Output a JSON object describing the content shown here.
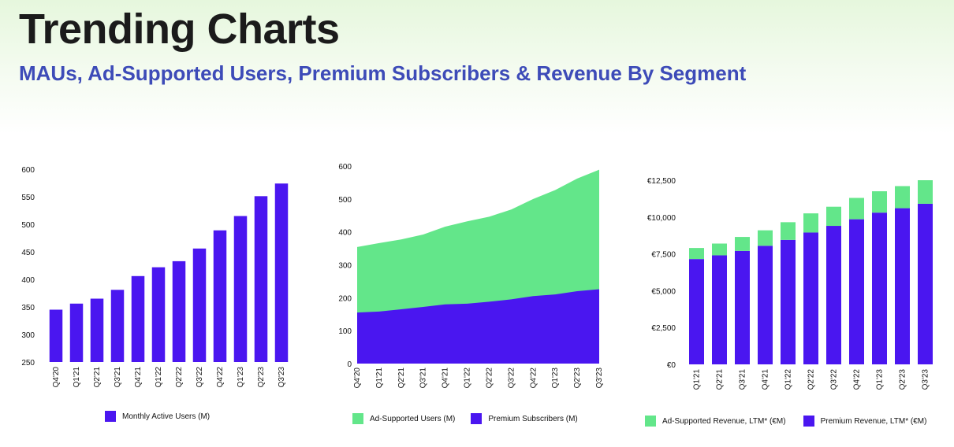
{
  "header": {
    "title": "Trending Charts",
    "subtitle": "MAUs, Ad-Supported Users, Premium Subscribers & Revenue By Segment"
  },
  "colors": {
    "premium": "#4a16f0",
    "ad_supported": "#63e68a"
  },
  "chart_data": [
    {
      "type": "bar",
      "categories": [
        "Q4'20",
        "Q1'21",
        "Q2'21",
        "Q3'21",
        "Q4'21",
        "Q1'22",
        "Q2'22",
        "Q3'22",
        "Q4'22",
        "Q1'23",
        "Q2'23",
        "Q3'23"
      ],
      "series": [
        {
          "name": "Monthly Active Users (M)",
          "values": [
            345,
            356,
            365,
            381,
            406,
            422,
            433,
            456,
            489,
            515,
            551,
            574
          ]
        }
      ],
      "ylim": [
        250,
        600
      ],
      "yticks": [
        "600",
        "550",
        "500",
        "450",
        "400",
        "350",
        "300",
        "250"
      ],
      "grid": false,
      "legend": "bottom"
    },
    {
      "type": "area",
      "categories": [
        "Q4'20",
        "Q1'21",
        "Q2'21",
        "Q3'21",
        "Q4'21",
        "Q1'22",
        "Q2'22",
        "Q3'22",
        "Q4'22",
        "Q1'23",
        "Q2'23",
        "Q3'23"
      ],
      "series": [
        {
          "name": "Premium Subscribers (M)",
          "values": [
            155,
            158,
            165,
            172,
            180,
            182,
            188,
            195,
            205,
            210,
            220,
            226
          ]
        },
        {
          "name": "Ad-Supported Users (M)",
          "values": [
            199,
            208,
            212,
            220,
            236,
            250,
            258,
            273,
            295,
            317,
            342,
            363
          ]
        }
      ],
      "stacked": true,
      "ylim": [
        0,
        600
      ],
      "yticks": [
        "600",
        "500",
        "400",
        "300",
        "200",
        "100",
        "0"
      ],
      "grid": false,
      "legend": "bottom"
    },
    {
      "type": "bar",
      "stacked": true,
      "categories": [
        "Q1'21",
        "Q2'21",
        "Q3'21",
        "Q4'21",
        "Q1'22",
        "Q2'22",
        "Q3'22",
        "Q4'22",
        "Q1'23",
        "Q2'23",
        "Q3'23"
      ],
      "series": [
        {
          "name": "Premium Revenue, LTM* (€M)",
          "values": [
            7150,
            7400,
            7700,
            8050,
            8450,
            8950,
            9400,
            9850,
            10300,
            10600,
            10900
          ]
        },
        {
          "name": "Ad-Supported Revenue, LTM* (€M)",
          "values": [
            750,
            800,
            950,
            1050,
            1200,
            1300,
            1300,
            1450,
            1450,
            1500,
            1600
          ]
        }
      ],
      "ylim": [
        0,
        12500
      ],
      "yticks": [
        "€12,500",
        "€10,000",
        "€7,500",
        "€5,000",
        "€2,500",
        "€0"
      ],
      "grid": false,
      "legend": "bottom"
    }
  ]
}
